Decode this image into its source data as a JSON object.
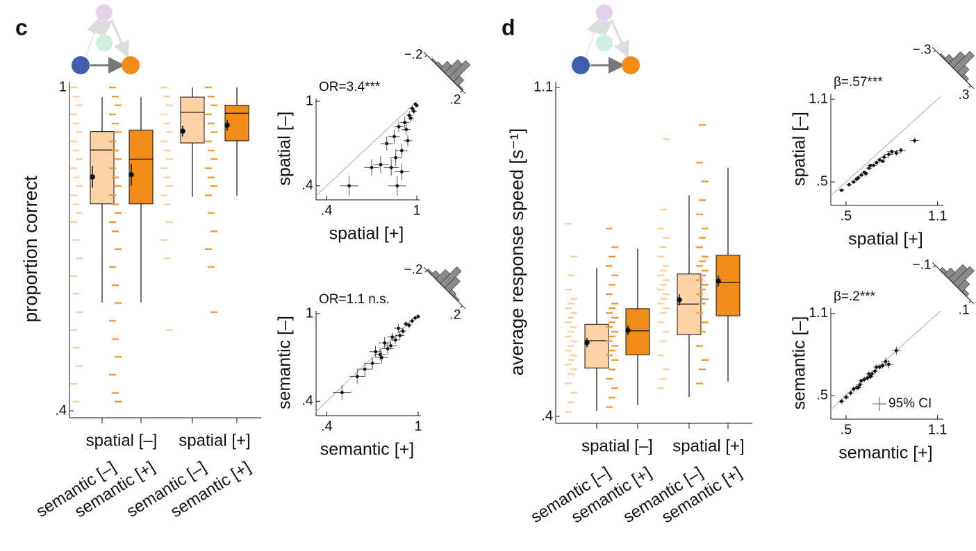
{
  "chart_data": [
    {
      "type": "box",
      "panel": "c",
      "ylabel": "proportion correct",
      "ylim": [
        0.4,
        1
      ],
      "yticks": [
        {
          "value": 0.4,
          "label": ".4"
        },
        1
      ],
      "groups": [
        "spatial [–]",
        "spatial [+]"
      ],
      "categories": [
        "semantic [–]",
        "semantic [+]",
        "semantic [–]",
        "semantic [+]"
      ],
      "boxes": [
        {
          "color": "#fbd3a6",
          "dot_color": "#fbd0a0",
          "q1": 0.784,
          "median": 0.884,
          "q3": 0.918,
          "low": 0.601,
          "high": 0.982,
          "mean": 0.834,
          "ci": 0.02,
          "points": [
            1,
            0.983,
            0.967,
            0.95,
            0.933,
            0.917,
            0.9,
            0.883,
            0.867,
            0.85,
            0.833,
            0.817,
            0.8,
            0.783,
            0.767,
            0.75,
            0.717,
            0.683,
            0.65,
            0.617,
            0.583,
            0.55,
            0.517,
            0.483,
            0.45,
            0.417
          ]
        },
        {
          "color": "#f08c1a",
          "dot_color": "#f39a33",
          "q1": 0.784,
          "median": 0.867,
          "q3": 0.921,
          "low": 0.601,
          "high": 0.982,
          "mean": 0.838,
          "ci": 0.02,
          "points": [
            1,
            0.983,
            0.967,
            0.95,
            0.933,
            0.917,
            0.9,
            0.883,
            0.867,
            0.85,
            0.833,
            0.817,
            0.8,
            0.783,
            0.767,
            0.75,
            0.733,
            0.7,
            0.667,
            0.633,
            0.6,
            0.567,
            0.533,
            0.5,
            0.467,
            0.433,
            0.417
          ]
        },
        {
          "color": "#fbd3a6",
          "dot_color": "#fbd0a0",
          "q1": 0.897,
          "median": 0.954,
          "q3": 0.982,
          "low": 0.797,
          "high": 1,
          "mean": 0.919,
          "ci": 0.01,
          "points": [
            1,
            0.983,
            0.967,
            0.95,
            0.933,
            0.917,
            0.9,
            0.883,
            0.867,
            0.85,
            0.833,
            0.817,
            0.8,
            0.783,
            0.75,
            0.717,
            0.683,
            0.55
          ]
        },
        {
          "color": "#f08c1a",
          "dot_color": "#f39a33",
          "q1": 0.901,
          "median": 0.952,
          "q3": 0.967,
          "low": 0.799,
          "high": 1,
          "mean": 0.93,
          "ci": 0.01,
          "points": [
            1,
            0.983,
            0.967,
            0.95,
            0.933,
            0.917,
            0.9,
            0.883,
            0.867,
            0.85,
            0.833,
            0.817,
            0.8,
            0.767,
            0.733,
            0.7,
            0.667,
            0.583
          ]
        }
      ]
    },
    {
      "type": "scatter",
      "annotation": "OR=3.4***",
      "xlabel": "spatial [+]",
      "ylabel": "spatial [–]",
      "identity_line": true,
      "xlim": [
        0.33,
        1
      ],
      "ylim": [
        0.33,
        1
      ],
      "xticks": [
        {
          "value": 0.4,
          "label": ".4"
        },
        1
      ],
      "yticks": [
        {
          "value": 0.4,
          "label": ".4"
        },
        1
      ],
      "x": [
        0.55,
        0.7,
        0.76,
        0.83,
        0.87,
        0.9,
        0.8,
        0.85,
        0.88,
        0.92,
        0.95,
        0.97,
        0.99,
        0.93,
        0.96,
        0.98,
        0.9,
        0.94,
        1.0,
        0.86
      ],
      "y": [
        0.4,
        0.53,
        0.55,
        0.53,
        0.4,
        0.5,
        0.7,
        0.75,
        0.82,
        0.85,
        0.9,
        0.95,
        0.98,
        0.8,
        0.88,
        0.93,
        0.65,
        0.72,
        0.97,
        0.6
      ],
      "xerr": [
        0.06,
        0.05,
        0.05,
        0.05,
        0.06,
        0.05,
        0.04,
        0.04,
        0.03,
        0.03,
        0.02,
        0.02,
        0.01,
        0.03,
        0.02,
        0.02,
        0.04,
        0.03,
        0.01,
        0.04
      ],
      "yerr": [
        0.07,
        0.06,
        0.06,
        0.06,
        0.07,
        0.06,
        0.05,
        0.05,
        0.04,
        0.04,
        0.03,
        0.02,
        0.01,
        0.04,
        0.03,
        0.02,
        0.05,
        0.04,
        0.01,
        0.06
      ],
      "inset": {
        "type": "histogram",
        "color": "#8a8a8a",
        "bins": [
          -0.2,
          -0.15,
          -0.1,
          -0.05,
          0,
          0.05,
          0.1,
          0.15,
          0.2
        ],
        "counts": [
          0,
          1,
          2,
          6,
          11,
          14,
          5,
          1
        ],
        "ticks": [
          {
            "value": -0.2,
            "label": "−.2"
          },
          {
            "value": 0.2,
            "label": ".2"
          }
        ]
      }
    },
    {
      "type": "scatter",
      "annotation": "OR=1.1 n.s.",
      "xlabel": "semantic [+]",
      "ylabel": "semantic [–]",
      "identity_line": true,
      "xlim": [
        0.33,
        1
      ],
      "ylim": [
        0.33,
        1
      ],
      "xticks": [
        {
          "value": 0.4,
          "label": ".4"
        },
        1
      ],
      "yticks": [
        {
          "value": 0.4,
          "label": ".4"
        },
        1
      ],
      "x": [
        0.5,
        0.6,
        0.65,
        0.7,
        0.72,
        0.75,
        0.78,
        0.8,
        0.83,
        0.85,
        0.87,
        0.9,
        0.92,
        0.94,
        0.96,
        0.98,
        1.0,
        0.88,
        0.82,
        0.76
      ],
      "y": [
        0.46,
        0.57,
        0.62,
        0.66,
        0.74,
        0.72,
        0.8,
        0.76,
        0.84,
        0.82,
        0.9,
        0.88,
        0.93,
        0.92,
        0.95,
        0.97,
        0.98,
        0.85,
        0.78,
        0.7
      ],
      "xerr": [
        0.06,
        0.05,
        0.05,
        0.05,
        0.04,
        0.04,
        0.04,
        0.04,
        0.03,
        0.03,
        0.03,
        0.02,
        0.02,
        0.02,
        0.02,
        0.01,
        0.01,
        0.03,
        0.04,
        0.04
      ],
      "yerr": [
        0.05,
        0.05,
        0.05,
        0.04,
        0.04,
        0.04,
        0.04,
        0.04,
        0.03,
        0.03,
        0.03,
        0.02,
        0.02,
        0.02,
        0.02,
        0.01,
        0.01,
        0.03,
        0.03,
        0.04
      ],
      "inset": {
        "type": "histogram",
        "color": "#8a8a8a",
        "bins": [
          -0.2,
          -0.15,
          -0.1,
          -0.05,
          0,
          0.05,
          0.1,
          0.15,
          0.2
        ],
        "counts": [
          1,
          3,
          7,
          12,
          8,
          2,
          1,
          0
        ],
        "ticks": [
          {
            "value": -0.2,
            "label": "−.2"
          },
          {
            "value": 0.2,
            "label": ".2"
          }
        ]
      }
    },
    {
      "type": "box",
      "panel": "d",
      "ylabel": "average response speed [s⁻¹]",
      "ylim": [
        0.4,
        1.1
      ],
      "yticks": [
        {
          "value": 0.4,
          "label": ".4"
        },
        1.1
      ],
      "groups": [
        "spatial [–]",
        "spatial [+]"
      ],
      "categories": [
        "semantic [–]",
        "semantic [+]",
        "semantic [–]",
        "semantic [+]"
      ],
      "boxes": [
        {
          "color": "#fbd3a6",
          "dot_color": "#fbd0a0",
          "q1": 0.503,
          "median": 0.561,
          "q3": 0.596,
          "low": 0.412,
          "high": 0.716,
          "mean": 0.557,
          "ci": 0.01,
          "points": [
            0.41,
            0.43,
            0.45,
            0.47,
            0.49,
            0.5,
            0.51,
            0.52,
            0.53,
            0.54,
            0.55,
            0.56,
            0.57,
            0.58,
            0.59,
            0.6,
            0.61,
            0.62,
            0.63,
            0.64,
            0.65,
            0.67,
            0.7,
            0.74,
            0.81
          ]
        },
        {
          "color": "#f08c1a",
          "dot_color": "#f39a33",
          "q1": 0.531,
          "median": 0.582,
          "q3": 0.629,
          "low": 0.424,
          "high": 0.757,
          "mean": 0.583,
          "ci": 0.01,
          "points": [
            0.42,
            0.44,
            0.46,
            0.48,
            0.5,
            0.52,
            0.53,
            0.54,
            0.55,
            0.56,
            0.57,
            0.58,
            0.59,
            0.6,
            0.61,
            0.62,
            0.63,
            0.64,
            0.66,
            0.68,
            0.7,
            0.72,
            0.74,
            0.76,
            0.8
          ]
        },
        {
          "color": "#fbd3a6",
          "dot_color": "#fbd0a0",
          "q1": 0.574,
          "median": 0.639,
          "q3": 0.703,
          "low": 0.441,
          "high": 0.87,
          "mean": 0.648,
          "ci": 0.012,
          "points": [
            0.46,
            0.48,
            0.5,
            0.53,
            0.56,
            0.58,
            0.6,
            0.62,
            0.63,
            0.64,
            0.65,
            0.66,
            0.67,
            0.68,
            0.69,
            0.7,
            0.71,
            0.72,
            0.74,
            0.76,
            0.78,
            0.8,
            0.84,
            0.99
          ]
        },
        {
          "color": "#f08c1a",
          "dot_color": "#f39a33",
          "q1": 0.614,
          "median": 0.685,
          "q3": 0.743,
          "low": 0.474,
          "high": 0.929,
          "mean": 0.688,
          "ci": 0.012,
          "points": [
            0.47,
            0.5,
            0.52,
            0.55,
            0.58,
            0.6,
            0.62,
            0.64,
            0.65,
            0.66,
            0.67,
            0.68,
            0.69,
            0.7,
            0.71,
            0.72,
            0.73,
            0.74,
            0.76,
            0.78,
            0.8,
            0.83,
            0.86,
            0.9,
            0.94,
            1.02
          ]
        }
      ]
    },
    {
      "type": "scatter",
      "annotation": "β=.57***",
      "xlabel": "spatial [+]",
      "ylabel": "spatial [–]",
      "identity_line": true,
      "xlim": [
        0.4,
        1.12
      ],
      "ylim": [
        0.36,
        1.12
      ],
      "xticks": [
        {
          "value": 0.5,
          "label": ".5"
        },
        1.1
      ],
      "yticks": [
        {
          "value": 0.5,
          "label": ".5"
        },
        1.1
      ],
      "x": [
        0.47,
        0.52,
        0.55,
        0.58,
        0.6,
        0.62,
        0.65,
        0.68,
        0.7,
        0.72,
        0.75,
        0.78,
        0.8,
        0.83,
        0.86,
        0.95,
        0.66,
        0.74,
        0.57,
        0.63
      ],
      "y": [
        0.44,
        0.48,
        0.5,
        0.53,
        0.55,
        0.57,
        0.6,
        0.62,
        0.64,
        0.66,
        0.68,
        0.7,
        0.72,
        0.71,
        0.73,
        0.8,
        0.62,
        0.65,
        0.52,
        0.56
      ],
      "xerr": [
        0.02,
        0.02,
        0.02,
        0.02,
        0.02,
        0.02,
        0.02,
        0.02,
        0.02,
        0.02,
        0.03,
        0.03,
        0.03,
        0.03,
        0.03,
        0.03,
        0.02,
        0.02,
        0.02,
        0.02
      ],
      "yerr": [
        0.01,
        0.01,
        0.01,
        0.01,
        0.01,
        0.01,
        0.01,
        0.01,
        0.01,
        0.01,
        0.02,
        0.02,
        0.02,
        0.02,
        0.02,
        0.02,
        0.01,
        0.01,
        0.01,
        0.01
      ],
      "inset": {
        "type": "histogram",
        "color": "#8a8a8a",
        "bins": [
          -0.3,
          -0.225,
          -0.15,
          -0.075,
          0,
          0.075,
          0.15,
          0.225,
          0.3
        ],
        "counts": [
          0,
          1,
          4,
          10,
          14,
          6,
          2,
          0
        ],
        "ticks": [
          {
            "value": -0.3,
            "label": "−.3"
          },
          {
            "value": 0.3,
            "label": ".3"
          }
        ]
      }
    },
    {
      "type": "scatter",
      "annotation": "β=.2***",
      "xlabel": "semantic [+]",
      "ylabel": "semantic [–]",
      "identity_line": true,
      "ci_legend": "95% CI",
      "xlim": [
        0.4,
        1.12
      ],
      "ylim": [
        0.36,
        1.12
      ],
      "xticks": [
        {
          "value": 0.5,
          "label": ".5"
        },
        1.1
      ],
      "yticks": [
        {
          "value": 0.5,
          "label": ".5"
        },
        1.1
      ],
      "x": [
        0.47,
        0.5,
        0.53,
        0.55,
        0.57,
        0.59,
        0.6,
        0.62,
        0.64,
        0.65,
        0.67,
        0.69,
        0.7,
        0.72,
        0.74,
        0.76,
        0.78,
        0.83,
        0.58,
        0.66
      ],
      "y": [
        0.46,
        0.49,
        0.52,
        0.55,
        0.56,
        0.58,
        0.61,
        0.62,
        0.63,
        0.66,
        0.66,
        0.68,
        0.71,
        0.71,
        0.72,
        0.75,
        0.73,
        0.83,
        0.56,
        0.64
      ],
      "xerr": [
        0.02,
        0.02,
        0.02,
        0.02,
        0.02,
        0.02,
        0.02,
        0.02,
        0.02,
        0.02,
        0.02,
        0.02,
        0.02,
        0.02,
        0.03,
        0.03,
        0.03,
        0.03,
        0.02,
        0.02
      ],
      "yerr": [
        0.02,
        0.02,
        0.02,
        0.02,
        0.02,
        0.02,
        0.02,
        0.02,
        0.02,
        0.02,
        0.02,
        0.02,
        0.02,
        0.02,
        0.02,
        0.03,
        0.03,
        0.03,
        0.02,
        0.02
      ],
      "inset": {
        "type": "histogram",
        "color": "#8a8a8a",
        "bins": [
          -0.1,
          -0.075,
          -0.05,
          -0.025,
          0,
          0.025,
          0.05,
          0.075,
          0.1
        ],
        "counts": [
          0,
          2,
          5,
          11,
          13,
          6,
          2,
          0
        ],
        "ticks": [
          {
            "value": -0.1,
            "label": "−.1"
          },
          {
            "value": 0.1,
            "label": ".1"
          }
        ]
      }
    }
  ]
}
